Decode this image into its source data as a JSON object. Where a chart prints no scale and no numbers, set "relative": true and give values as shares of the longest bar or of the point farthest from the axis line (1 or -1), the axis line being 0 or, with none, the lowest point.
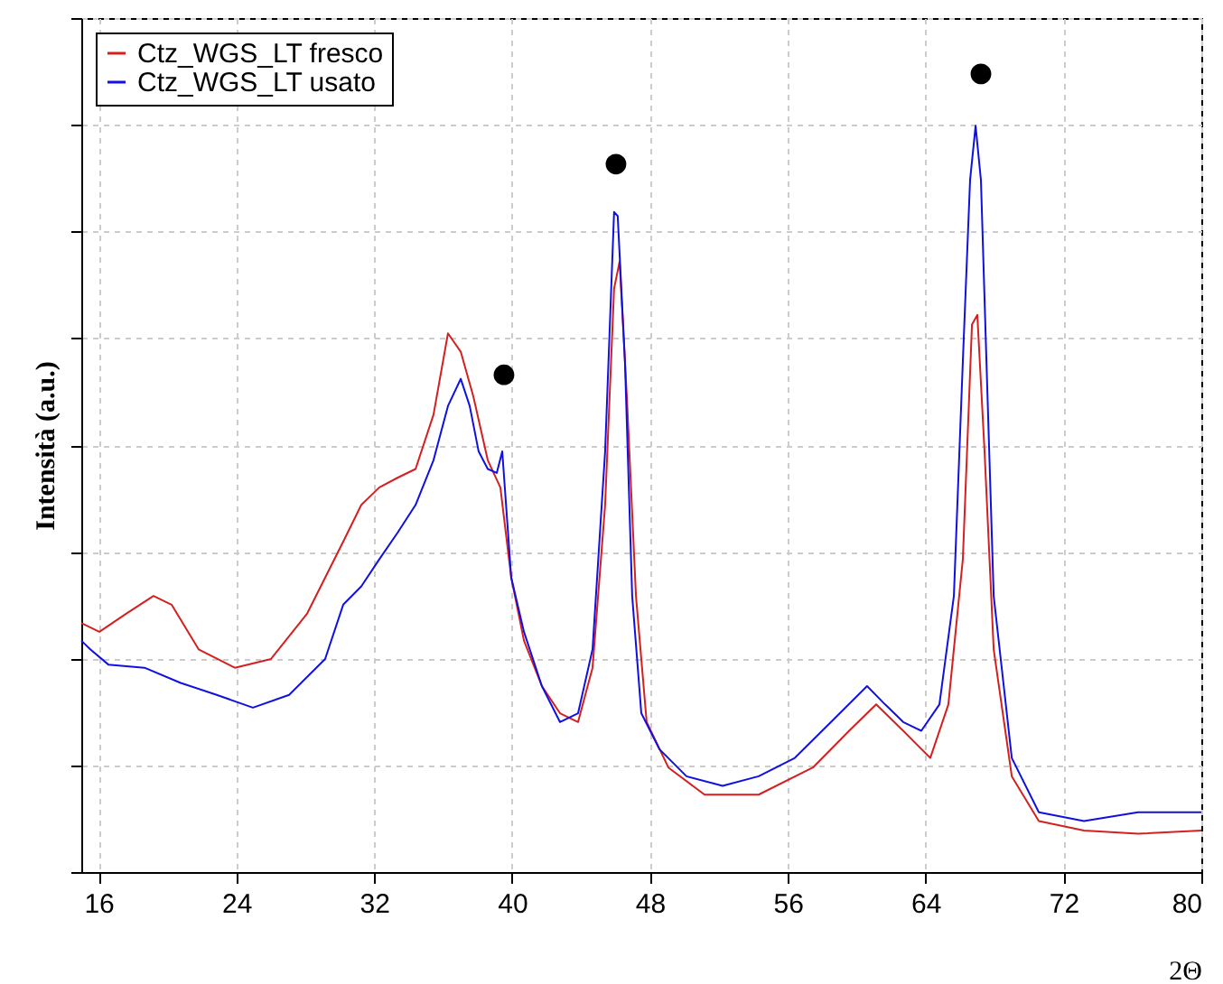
{
  "chart_data": {
    "type": "line",
    "relative": true,
    "xlabel": "2Θ",
    "ylabel": "Intensità (a.u.)",
    "xlim": [
      15,
      80
    ],
    "xticks": [
      16,
      24,
      32,
      40,
      48,
      56,
      64,
      72,
      80
    ],
    "grid": true,
    "legend": "top left",
    "marker": "none",
    "line_style": "solid",
    "series": [
      {
        "name": "Ctz_WGS_LT fresco",
        "color": "#d42020",
        "x": [
          15,
          16.05,
          17.62,
          19.19,
          20.24,
          21.81,
          23.91,
          26.01,
          28.11,
          30.2,
          31.25,
          32.3,
          33.35,
          34.4,
          35.44,
          36.28,
          37.02,
          37.75,
          38.59,
          39.32,
          39.95,
          40.69,
          41.73,
          42.78,
          43.83,
          44.67,
          45.4,
          45.92,
          46.24,
          46.66,
          47.19,
          47.81,
          49.07,
          51.17,
          54.31,
          57.46,
          59.56,
          61.13,
          62.7,
          64.27,
          65.32,
          66.16,
          66.69,
          67.0,
          67.42,
          67.95,
          69.0,
          70.57,
          73.19,
          76.33,
          80
        ],
        "values": [
          0.312,
          0.301,
          0.324,
          0.346,
          0.335,
          0.279,
          0.256,
          0.267,
          0.324,
          0.414,
          0.46,
          0.482,
          0.494,
          0.505,
          0.573,
          0.675,
          0.652,
          0.596,
          0.516,
          0.482,
          0.369,
          0.29,
          0.233,
          0.199,
          0.188,
          0.256,
          0.46,
          0.731,
          0.765,
          0.596,
          0.346,
          0.188,
          0.131,
          0.097,
          0.097,
          0.131,
          0.177,
          0.21,
          0.177,
          0.143,
          0.21,
          0.392,
          0.686,
          0.698,
          0.527,
          0.279,
          0.12,
          0.064,
          0.052,
          0.048,
          0.052
        ]
      },
      {
        "name": "Ctz_WGS_LT usato",
        "color": "#1010e0",
        "x": [
          15,
          15.52,
          16.57,
          18.67,
          20.77,
          22.86,
          24.96,
          27.06,
          29.15,
          30.2,
          31.25,
          32.3,
          33.35,
          34.4,
          35.44,
          36.28,
          37.02,
          37.54,
          38.06,
          38.59,
          39.11,
          39.43,
          39.95,
          40.69,
          41.73,
          42.78,
          43.83,
          44.67,
          45.4,
          45.92,
          46.13,
          46.55,
          46.97,
          47.5,
          48.55,
          50.12,
          52.22,
          54.31,
          56.41,
          58.51,
          60.6,
          61.65,
          62.7,
          63.75,
          64.8,
          65.64,
          66.16,
          66.58,
          66.9,
          67.21,
          67.53,
          67.95,
          69.0,
          70.57,
          73.19,
          76.33,
          80
        ],
        "values": [
          0.29,
          0.279,
          0.26,
          0.256,
          0.237,
          0.222,
          0.206,
          0.222,
          0.267,
          0.335,
          0.358,
          0.392,
          0.425,
          0.46,
          0.516,
          0.584,
          0.618,
          0.584,
          0.527,
          0.505,
          0.5,
          0.527,
          0.369,
          0.301,
          0.233,
          0.188,
          0.199,
          0.279,
          0.527,
          0.827,
          0.822,
          0.64,
          0.346,
          0.199,
          0.154,
          0.12,
          0.108,
          0.12,
          0.143,
          0.188,
          0.233,
          0.21,
          0.188,
          0.177,
          0.21,
          0.346,
          0.64,
          0.867,
          0.935,
          0.867,
          0.64,
          0.346,
          0.143,
          0.075,
          0.064,
          0.075,
          0.075
        ]
      },
      {
        "type": "scatter",
        "marker": "circle",
        "color": "#000000",
        "x": [
          39.53,
          46.03,
          67.21
        ],
        "values": [
          0.623,
          0.887,
          1.0
        ]
      }
    ]
  }
}
